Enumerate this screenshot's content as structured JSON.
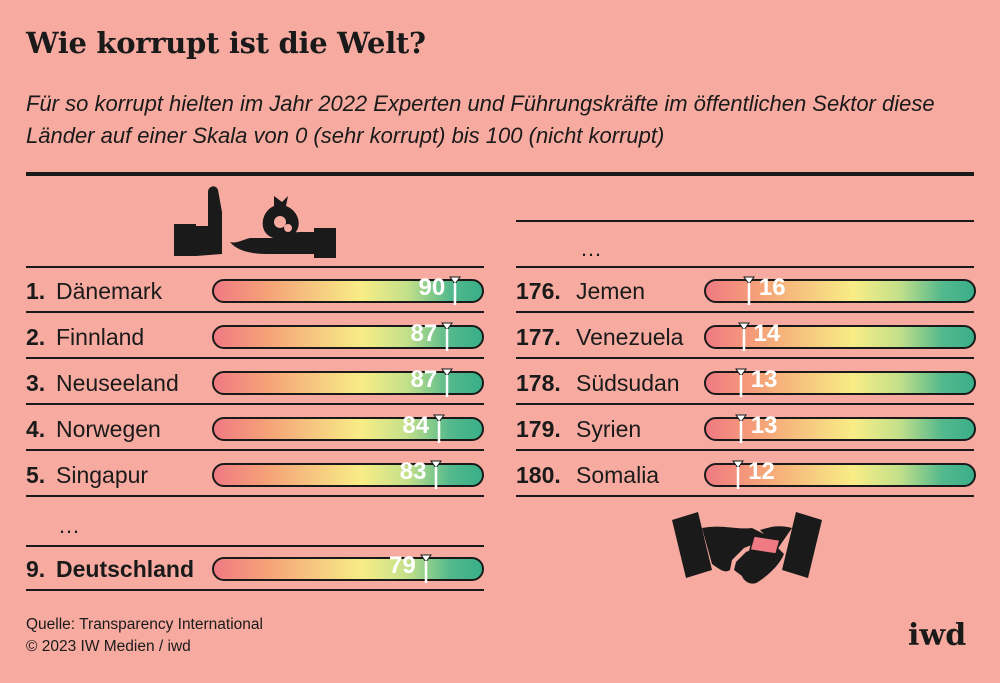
{
  "title": "Wie korrupt ist die Welt?",
  "subtitle": "Für so korrupt hielten im Jahr 2022 Experten und Führungskräfte im öffentlichen Sektor diese Länder auf einer Skala von 0 (sehr korrupt) bis 100 (nicht korrupt)",
  "ellipsis": "…",
  "source_line1": "Quelle: Transparency International",
  "source_line2": "© 2023 IW Medien / iwd",
  "logo": "iwd",
  "colors": {
    "background": "#f7aba0",
    "low": "#f07a83",
    "mid": "#f8ed86",
    "high": "#3aae8a"
  },
  "icons": [
    "hand-refusing-money-icon",
    "handshake-bribe-icon"
  ],
  "chart_data": {
    "type": "bar",
    "scale": [
      0,
      100
    ],
    "left_column": [
      {
        "rank": "1.",
        "country": "Dänemark",
        "value": 90,
        "highlight": false
      },
      {
        "rank": "2.",
        "country": "Finnland",
        "value": 87,
        "highlight": false
      },
      {
        "rank": "3.",
        "country": "Neuseeland",
        "value": 87,
        "highlight": false
      },
      {
        "rank": "4.",
        "country": "Norwegen",
        "value": 84,
        "highlight": false
      },
      {
        "rank": "5.",
        "country": "Singapur",
        "value": 83,
        "highlight": false
      },
      {
        "rank": "9.",
        "country": "Deutschland",
        "value": 79,
        "highlight": true
      }
    ],
    "right_column": [
      {
        "rank": "176.",
        "country": "Jemen",
        "value": 16
      },
      {
        "rank": "177.",
        "country": "Venezuela",
        "value": 14
      },
      {
        "rank": "178.",
        "country": "Südsudan",
        "value": 13
      },
      {
        "rank": "179.",
        "country": "Syrien",
        "value": 13
      },
      {
        "rank": "180.",
        "country": "Somalia",
        "value": 12
      }
    ]
  }
}
